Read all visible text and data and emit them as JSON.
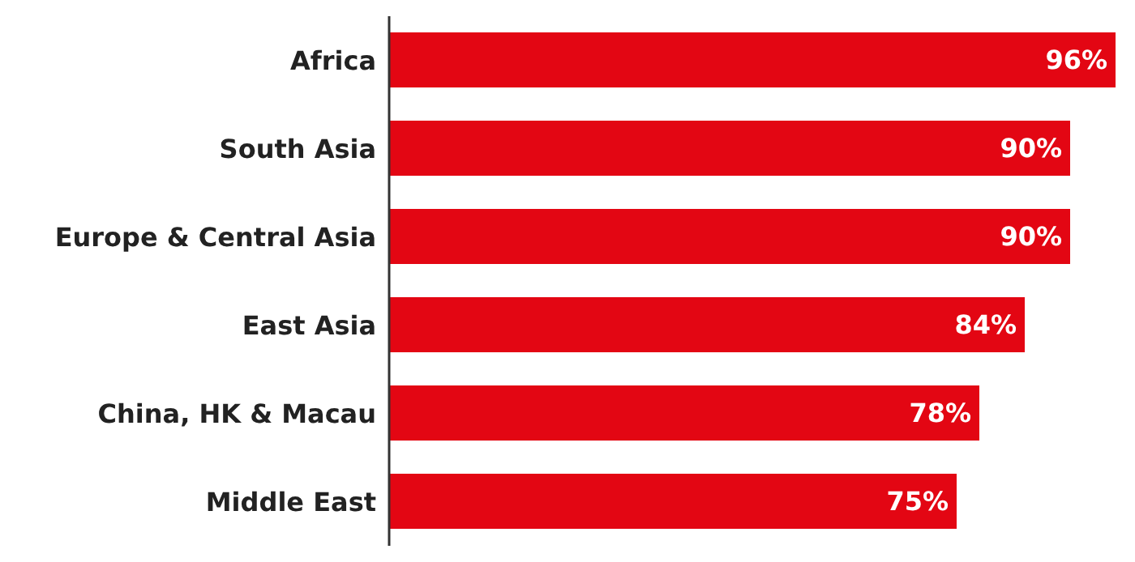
{
  "chart_data": {
    "type": "bar",
    "orientation": "horizontal",
    "categories": [
      "Africa",
      "South Asia",
      "Europe & Central Asia",
      "East Asia",
      "China, HK & Macau",
      "Middle East"
    ],
    "values": [
      96,
      90,
      90,
      84,
      78,
      75
    ],
    "value_labels": [
      "96%",
      "90%",
      "90%",
      "84%",
      "78%",
      "75%"
    ],
    "color": "#e30613",
    "tick_labels": "y",
    "grid": false
  }
}
